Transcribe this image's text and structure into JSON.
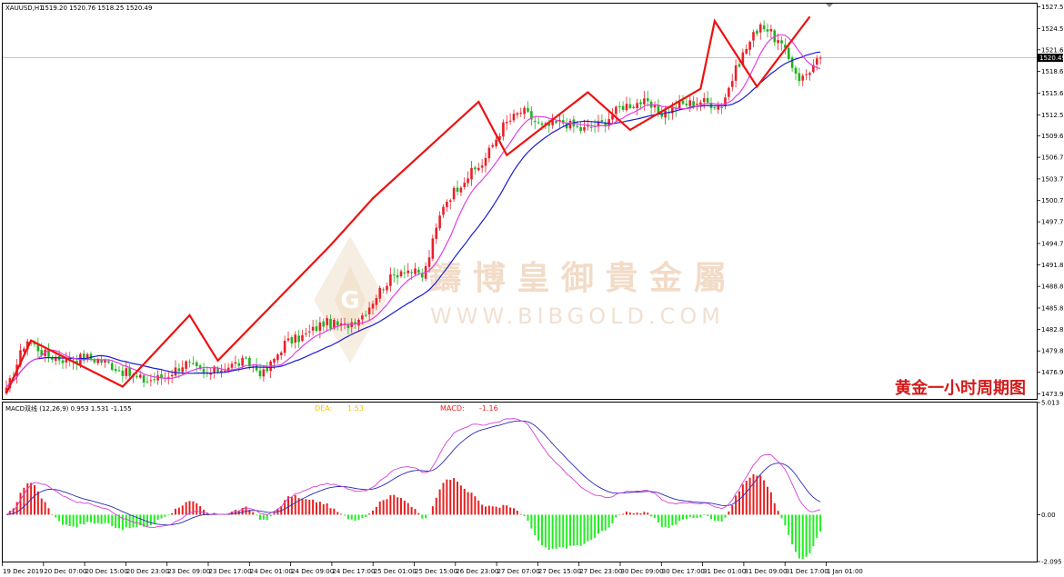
{
  "header": {
    "symbol": "XAUUSD,H1",
    "ohlc": "1519.20 1520.76 1518.25 1520.49"
  },
  "watermark": {
    "cn": "鑄 博 皇 御 貴 金 屬",
    "en": "WWW.BIBGOLD.COM"
  },
  "caption": "黄金一小时周期图",
  "colors": {
    "bull": "#e8202a",
    "bear": "#1db31d",
    "ma_fast": "#e23fe2",
    "ma_slow": "#1b1bd4",
    "zigzag": "#ee1111",
    "dea_text": "#f0c800",
    "macd_text": "#ee2222",
    "macd_line": "#d440d4",
    "signal_line": "#2b2bb5",
    "hist_pos": "#e82020",
    "hist_neg": "#22ee22"
  },
  "chart_data": [
    {
      "type": "candlestick",
      "title": "XAUUSD,H1",
      "current_price": "1520.49",
      "y_ticks": [
        "1527.55",
        "1524.55",
        "1521.60",
        "1518.60",
        "1515.60",
        "1512.55",
        "1509.65",
        "1506.70",
        "1503.70",
        "1500.70",
        "1497.75",
        "1494.75",
        "1491.80",
        "1488.80",
        "1485.80",
        "1482.85",
        "1479.85",
        "1476.90",
        "1473.90"
      ],
      "ylim": [
        1473.2,
        1528.0
      ],
      "x_ticks": [
        "19 Dec 2019",
        "20 Dec 07:00",
        "20 Dec 15:00",
        "20 Dec 23:00",
        "23 Dec 09:00",
        "23 Dec 17:00",
        "24 Dec 01:00",
        "24 Dec 09:00",
        "24 Dec 17:00",
        "25 Dec 01:00",
        "25 Dec 15:00",
        "26 Dec 23:00",
        "27 Dec 07:00",
        "27 Dec 15:00",
        "27 Dec 23:00",
        "30 Dec 09:00",
        "30 Dec 17:00",
        "31 Dec 01:00",
        "31 Dec 09:00",
        "31 Dec 17:00",
        "1 Jan 01:00"
      ],
      "price_path": [
        1474.2,
        1481.5,
        1479.3,
        1478.6,
        1479.0,
        1478.3,
        1476.8,
        1475.7,
        1476.3,
        1478.2,
        1476.5,
        1477.6,
        1478.4,
        1476.6,
        1480.9,
        1481.9,
        1483.8,
        1483.2,
        1485.0,
        1489.0,
        1491.4,
        1490.1,
        1500.2,
        1503.5,
        1505.9,
        1511.0,
        1513.2,
        1510.8,
        1511.6,
        1510.5,
        1511.4,
        1513.8,
        1514.4,
        1512.8,
        1514.0,
        1514.5,
        1513.8,
        1520.5,
        1525.4,
        1522.3,
        1517.4,
        1520.49
      ],
      "zigzag_points": [
        [
          0,
          1474.0
        ],
        [
          7,
          1481.3
        ],
        [
          33,
          1474.9
        ],
        [
          52,
          1484.8
        ],
        [
          60,
          1478.5
        ],
        [
          92,
          1494.5
        ],
        [
          104,
          1501.0
        ],
        [
          134,
          1514.4
        ],
        [
          142,
          1507.0
        ],
        [
          165,
          1515.7
        ],
        [
          177,
          1510.5
        ],
        [
          197,
          1516.2
        ],
        [
          201,
          1525.6
        ],
        [
          213,
          1516.5
        ],
        [
          228,
          1526.2
        ]
      ],
      "series": [
        {
          "name": "",
          "type": "ma",
          "period": 10
        },
        {
          "name": "",
          "type": "ma",
          "period": 24
        }
      ]
    },
    {
      "type": "line",
      "title": "MACD双线 (12,26,9) 0.953 1.531 -1.155",
      "labels": {
        "dea_name": "DEA:",
        "dea_value": "1.53",
        "macd_name": "MACD:",
        "macd_value": "-1.16"
      },
      "y_ticks": [
        "5.013",
        "0.00",
        "-2.095"
      ],
      "ylim": [
        -2.095,
        5.013
      ],
      "series": [
        {
          "name": "MACD",
          "kind": "hist"
        },
        {
          "name": "",
          "kind": "line_fast"
        },
        {
          "name": "",
          "kind": "line_slow"
        }
      ]
    }
  ]
}
